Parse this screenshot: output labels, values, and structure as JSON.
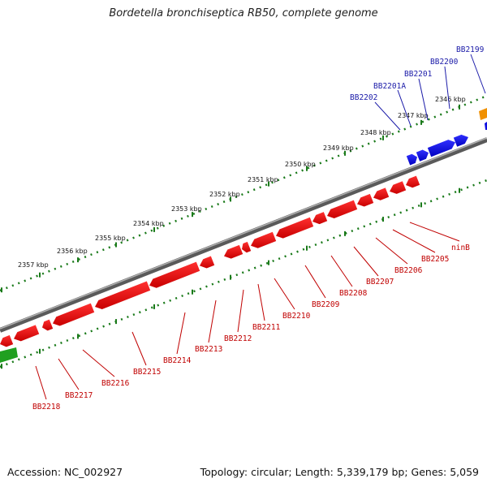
{
  "title": "Bordetella bronchiseptica RB50, complete genome",
  "footer": {
    "accession": "Accession: NC_002927",
    "topology": "Topology: circular; Length: 5,339,179 bp; Genes: 5,059"
  },
  "colors": {
    "backbone": "#7a7a7a",
    "forward_gene": "#1010e0",
    "reverse_gene": "#e00000",
    "orange_gene": "#f09000",
    "green_gene": "#20a020",
    "tick": "#1a7a1a",
    "top_label": "#1a1aa8",
    "bottom_label": "#c00000"
  },
  "scale_labels": [
    "2357 kbp",
    "2356 kbp",
    "2355 kbp",
    "2354 kbp",
    "2353 kbp",
    "2352 kbp",
    "2351 kbp",
    "2350 kbp",
    "2349 kbp",
    "2348 kbp",
    "2347 kbp",
    "2346 kbp"
  ],
  "top_genes": [
    "BB2202",
    "BB2201A",
    "BB2201",
    "BB2200",
    "BB2199"
  ],
  "bottom_genes": [
    "BB2218",
    "BB2217",
    "BB2216",
    "BB2215",
    "BB2214",
    "BB2213",
    "BB2212",
    "BB2211",
    "BB2210",
    "BB2209",
    "BB2208",
    "BB2207",
    "BB2206",
    "BB2205",
    "ninB"
  ]
}
